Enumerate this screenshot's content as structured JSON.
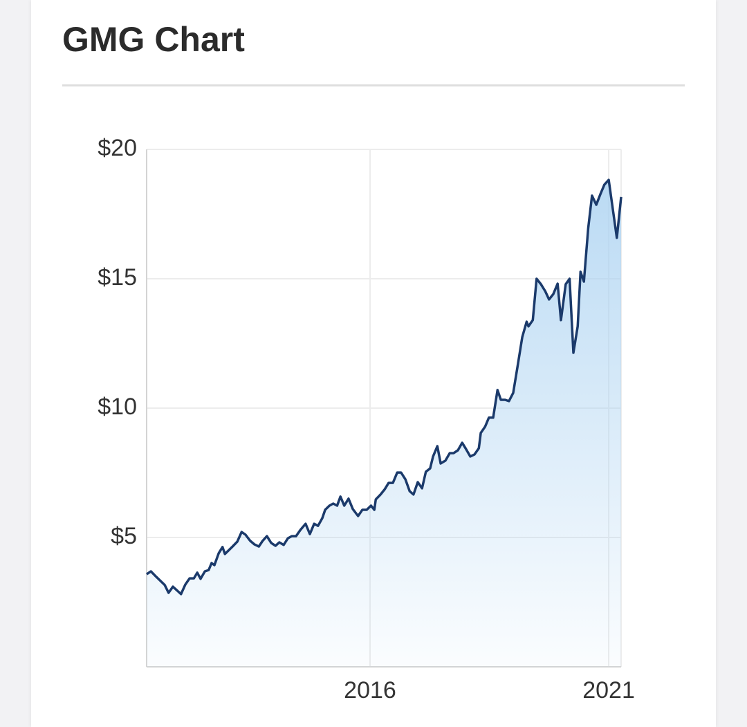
{
  "chart_data": {
    "type": "line",
    "title": "GMG Chart",
    "x": [
      2011.32,
      2011.41,
      2011.52,
      2011.7,
      2011.78,
      2011.87,
      2012.04,
      2012.13,
      2012.22,
      2012.31,
      2012.38,
      2012.45,
      2012.54,
      2012.62,
      2012.68,
      2012.74,
      2012.83,
      2012.91,
      2012.96,
      2013.12,
      2013.22,
      2013.31,
      2013.39,
      2013.49,
      2013.58,
      2013.67,
      2013.75,
      2013.84,
      2013.93,
      2014.02,
      2014.1,
      2014.19,
      2014.28,
      2014.36,
      2014.45,
      2014.54,
      2014.65,
      2014.74,
      2014.83,
      2014.91,
      2015.0,
      2015.06,
      2015.15,
      2015.23,
      2015.31,
      2015.38,
      2015.46,
      2015.55,
      2015.64,
      2015.75,
      2015.84,
      2015.93,
      2016.02,
      2016.09,
      2016.12,
      2016.22,
      2016.31,
      2016.39,
      2016.48,
      2016.57,
      2016.65,
      2016.74,
      2016.83,
      2016.91,
      2017.0,
      2017.09,
      2017.17,
      2017.26,
      2017.32,
      2017.41,
      2017.48,
      2017.58,
      2017.67,
      2017.75,
      2017.84,
      2017.93,
      2018.01,
      2018.1,
      2018.19,
      2018.28,
      2018.32,
      2018.41,
      2018.49,
      2018.58,
      2018.67,
      2018.74,
      2018.83,
      2018.91,
      2019.0,
      2019.09,
      2019.19,
      2019.28,
      2019.32,
      2019.41,
      2019.49,
      2019.58,
      2019.67,
      2019.75,
      2019.84,
      2019.93,
      2020.0,
      2020.1,
      2020.18,
      2020.26,
      2020.35,
      2020.41,
      2020.48,
      2020.57,
      2020.65,
      2020.74,
      2020.83,
      2020.91,
      2021.0,
      2021.17,
      2021.26
    ],
    "values": [
      3.58,
      3.69,
      3.48,
      3.16,
      2.86,
      3.1,
      2.81,
      3.18,
      3.42,
      3.42,
      3.64,
      3.4,
      3.69,
      3.74,
      4.01,
      3.93,
      4.39,
      4.63,
      4.36,
      4.65,
      4.84,
      5.21,
      5.11,
      4.87,
      4.73,
      4.65,
      4.87,
      5.05,
      4.79,
      4.68,
      4.81,
      4.71,
      4.97,
      5.05,
      5.05,
      5.29,
      5.53,
      5.13,
      5.53,
      5.45,
      5.75,
      6.07,
      6.23,
      6.31,
      6.23,
      6.58,
      6.23,
      6.5,
      6.1,
      5.83,
      6.07,
      6.07,
      6.23,
      6.07,
      6.47,
      6.66,
      6.87,
      7.11,
      7.11,
      7.51,
      7.51,
      7.25,
      6.79,
      6.66,
      7.14,
      6.9,
      7.54,
      7.67,
      8.13,
      8.53,
      7.86,
      7.97,
      8.26,
      8.26,
      8.37,
      8.66,
      8.42,
      8.13,
      8.21,
      8.45,
      9.04,
      9.28,
      9.63,
      9.63,
      10.7,
      10.32,
      10.32,
      10.27,
      10.59,
      11.6,
      12.75,
      13.34,
      13.16,
      13.4,
      15.0,
      14.79,
      14.52,
      14.2,
      14.41,
      14.81,
      13.4,
      14.79,
      15.0,
      12.14,
      13.16,
      15.27,
      14.89,
      16.95,
      18.21,
      17.86,
      18.29,
      18.64,
      18.82,
      16.58,
      18.16
    ],
    "line_color": "#1b3a6b",
    "fill_color": "#a9d1f1",
    "xlim": [
      2011.32,
      2021.26
    ],
    "xticks": [
      2016,
      2021
    ],
    "ylim": [
      0,
      20
    ],
    "yticks": [
      {
        "value": 5,
        "label": "$5"
      },
      {
        "value": 10,
        "label": "$10"
      },
      {
        "value": 15,
        "label": "$15"
      },
      {
        "value": 20,
        "label": "$20"
      }
    ],
    "grid": true
  }
}
